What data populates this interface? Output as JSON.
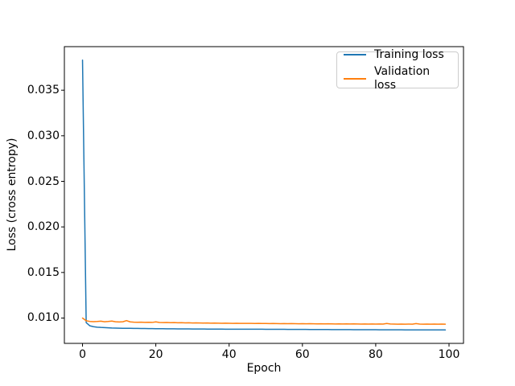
{
  "figure": {
    "background": "#ffffff",
    "axes_edge_color": "#000000"
  },
  "chart_data": {
    "type": "line",
    "title": "",
    "xlabel": "Epoch",
    "ylabel": "Loss (cross entropy)",
    "xlim": [
      -4.95,
      103.95
    ],
    "ylim": [
      0.00722,
      0.03978
    ],
    "x_ticks": [
      0,
      20,
      40,
      60,
      80,
      100
    ],
    "x_tick_labels": [
      "0",
      "20",
      "40",
      "60",
      "80",
      "100"
    ],
    "y_ticks": [
      0.01,
      0.015,
      0.02,
      0.025,
      0.03,
      0.035
    ],
    "y_tick_labels": [
      "0.010",
      "0.015",
      "0.020",
      "0.025",
      "0.030",
      "0.035"
    ],
    "grid": false,
    "legend": {
      "position": "upper right"
    },
    "x_start": 0,
    "x_step": 1,
    "n_points": 100,
    "series": [
      {
        "name": "Training loss",
        "color": "#1f77b4",
        "values": [
          0.0383,
          0.0095,
          0.00915,
          0.00905,
          0.009,
          0.00897,
          0.00895,
          0.00893,
          0.00891,
          0.0089,
          0.00889,
          0.00888,
          0.00887,
          0.00887,
          0.00886,
          0.00886,
          0.00885,
          0.00885,
          0.00884,
          0.00884,
          0.00883,
          0.00883,
          0.00883,
          0.00882,
          0.00882,
          0.00882,
          0.00881,
          0.00881,
          0.00881,
          0.00881,
          0.0088,
          0.0088,
          0.0088,
          0.0088,
          0.00879,
          0.00879,
          0.00879,
          0.00879,
          0.00879,
          0.00878,
          0.00878,
          0.00878,
          0.00878,
          0.00878,
          0.00877,
          0.00877,
          0.00877,
          0.00877,
          0.00877,
          0.00877,
          0.00876,
          0.00876,
          0.00876,
          0.00876,
          0.00876,
          0.00876,
          0.00875,
          0.00875,
          0.00875,
          0.00875,
          0.00875,
          0.00875,
          0.00874,
          0.00874,
          0.00874,
          0.00874,
          0.00874,
          0.00874,
          0.00873,
          0.00873,
          0.00873,
          0.00873,
          0.00873,
          0.00873,
          0.00872,
          0.00872,
          0.00872,
          0.00872,
          0.00872,
          0.00872,
          0.00872,
          0.00871,
          0.00871,
          0.00871,
          0.00871,
          0.00871,
          0.00871,
          0.00871,
          0.0087,
          0.0087,
          0.0087,
          0.0087,
          0.0087,
          0.0087,
          0.0087,
          0.0087,
          0.0087,
          0.0087,
          0.0087,
          0.0087
        ]
      },
      {
        "name": "Validation loss",
        "color": "#ff7f0e",
        "values": [
          0.01,
          0.0097,
          0.00963,
          0.0096,
          0.00962,
          0.00966,
          0.00959,
          0.00962,
          0.00967,
          0.00959,
          0.00957,
          0.00959,
          0.00972,
          0.00958,
          0.00955,
          0.00954,
          0.00955,
          0.00953,
          0.00954,
          0.00952,
          0.00958,
          0.00951,
          0.0095,
          0.00951,
          0.00949,
          0.0095,
          0.00948,
          0.00949,
          0.00947,
          0.00948,
          0.00946,
          0.00947,
          0.00946,
          0.00945,
          0.00946,
          0.00944,
          0.00945,
          0.00944,
          0.00943,
          0.00944,
          0.00943,
          0.00942,
          0.00943,
          0.00942,
          0.00941,
          0.00942,
          0.00941,
          0.0094,
          0.00941,
          0.0094,
          0.0094,
          0.00939,
          0.0094,
          0.00939,
          0.00938,
          0.00939,
          0.00938,
          0.00939,
          0.00938,
          0.00937,
          0.00938,
          0.00937,
          0.00938,
          0.00937,
          0.00936,
          0.00937,
          0.00936,
          0.00937,
          0.00936,
          0.00935,
          0.00936,
          0.00935,
          0.00936,
          0.00935,
          0.00936,
          0.00935,
          0.00934,
          0.00935,
          0.00934,
          0.00935,
          0.00934,
          0.00935,
          0.00934,
          0.0094,
          0.00935,
          0.00934,
          0.00933,
          0.00934,
          0.00933,
          0.00934,
          0.00933,
          0.00939,
          0.00934,
          0.00933,
          0.00934,
          0.00933,
          0.00934,
          0.00933,
          0.00934,
          0.00933
        ]
      }
    ]
  }
}
